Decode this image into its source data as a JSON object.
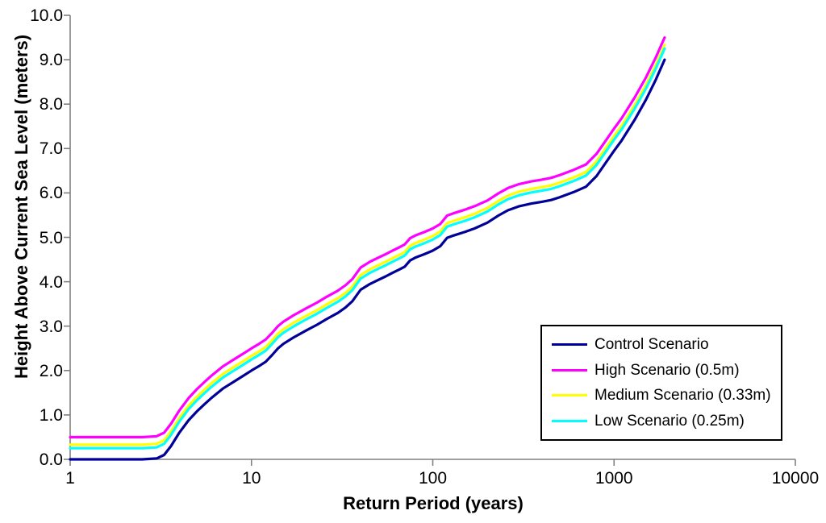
{
  "chart_data": {
    "type": "line",
    "title": "",
    "xlabel": "Return Period (years)",
    "ylabel": "Height Above Current Sea Level (meters)",
    "x_scale": "log",
    "xlim": [
      1,
      10000
    ],
    "ylim": [
      0,
      10
    ],
    "grid": false,
    "legend_position": "inside-bottom-right",
    "axis_color": "#808080",
    "x_ticks": [
      {
        "v": 1,
        "label": "1"
      },
      {
        "v": 10,
        "label": "10"
      },
      {
        "v": 100,
        "label": "100"
      },
      {
        "v": 1000,
        "label": "1000"
      },
      {
        "v": 10000,
        "label": "10000"
      }
    ],
    "y_ticks": [
      {
        "v": 0,
        "label": "0.0"
      },
      {
        "v": 1,
        "label": "1.0"
      },
      {
        "v": 2,
        "label": "2.0"
      },
      {
        "v": 3,
        "label": "3.0"
      },
      {
        "v": 4,
        "label": "4.0"
      },
      {
        "v": 5,
        "label": "5.0"
      },
      {
        "v": 6,
        "label": "6.0"
      },
      {
        "v": 7,
        "label": "7.0"
      },
      {
        "v": 8,
        "label": "8.0"
      },
      {
        "v": 9,
        "label": "9.0"
      },
      {
        "v": 10,
        "label": "10.0"
      }
    ],
    "x": [
      1,
      1.5,
      2,
      2.5,
      3,
      3.3,
      3.6,
      4,
      4.5,
      5,
      5.5,
      6,
      7,
      8,
      9,
      10,
      11,
      12,
      13,
      14,
      15,
      17,
      20,
      23,
      26,
      30,
      33,
      36,
      40,
      45,
      50,
      55,
      60,
      65,
      70,
      75,
      80,
      90,
      100,
      110,
      120,
      130,
      150,
      170,
      200,
      230,
      260,
      300,
      350,
      400,
      450,
      500,
      600,
      700,
      800,
      900,
      1000,
      1100,
      1300,
      1500,
      1700,
      1900
    ],
    "series": [
      {
        "name": "Control Scenario",
        "color": "#000099",
        "values": [
          0,
          0,
          0,
          0,
          0.02,
          0.1,
          0.3,
          0.6,
          0.88,
          1.08,
          1.24,
          1.38,
          1.6,
          1.75,
          1.88,
          2.0,
          2.1,
          2.2,
          2.35,
          2.5,
          2.6,
          2.74,
          2.9,
          3.03,
          3.16,
          3.3,
          3.42,
          3.56,
          3.82,
          3.95,
          4.04,
          4.12,
          4.2,
          4.27,
          4.34,
          4.48,
          4.54,
          4.62,
          4.7,
          4.8,
          4.99,
          5.04,
          5.12,
          5.2,
          5.33,
          5.49,
          5.61,
          5.7,
          5.76,
          5.8,
          5.84,
          5.9,
          6.02,
          6.14,
          6.38,
          6.68,
          6.95,
          7.18,
          7.65,
          8.1,
          8.55,
          9.0
        ]
      },
      {
        "name": "High Scenario (0.5m)",
        "color": "#FF00FF",
        "values": [
          0.5,
          0.5,
          0.5,
          0.5,
          0.52,
          0.6,
          0.8,
          1.1,
          1.38,
          1.58,
          1.74,
          1.88,
          2.1,
          2.25,
          2.38,
          2.5,
          2.6,
          2.7,
          2.85,
          3.0,
          3.1,
          3.24,
          3.4,
          3.53,
          3.66,
          3.8,
          3.92,
          4.06,
          4.32,
          4.45,
          4.54,
          4.62,
          4.7,
          4.77,
          4.84,
          4.98,
          5.04,
          5.12,
          5.2,
          5.3,
          5.49,
          5.54,
          5.62,
          5.7,
          5.83,
          5.99,
          6.11,
          6.2,
          6.26,
          6.3,
          6.34,
          6.4,
          6.52,
          6.64,
          6.88,
          7.18,
          7.45,
          7.68,
          8.15,
          8.6,
          9.05,
          9.5
        ]
      },
      {
        "name": "Medium Scenario (0.33m)",
        "color": "#FFFF00",
        "values": [
          0.33,
          0.33,
          0.33,
          0.33,
          0.35,
          0.43,
          0.63,
          0.93,
          1.21,
          1.41,
          1.57,
          1.71,
          1.93,
          2.08,
          2.21,
          2.33,
          2.43,
          2.53,
          2.68,
          2.83,
          2.93,
          3.07,
          3.23,
          3.36,
          3.49,
          3.63,
          3.75,
          3.89,
          4.15,
          4.28,
          4.37,
          4.45,
          4.53,
          4.6,
          4.67,
          4.81,
          4.87,
          4.95,
          5.03,
          5.13,
          5.32,
          5.37,
          5.45,
          5.53,
          5.66,
          5.82,
          5.94,
          6.03,
          6.09,
          6.13,
          6.17,
          6.23,
          6.35,
          6.47,
          6.71,
          7.01,
          7.28,
          7.51,
          7.98,
          8.43,
          8.88,
          9.33
        ]
      },
      {
        "name": "Low Scenario (0.25m)",
        "color": "#00FFFF",
        "values": [
          0.25,
          0.25,
          0.25,
          0.25,
          0.27,
          0.35,
          0.55,
          0.85,
          1.13,
          1.33,
          1.49,
          1.63,
          1.85,
          2.0,
          2.13,
          2.25,
          2.35,
          2.45,
          2.6,
          2.75,
          2.85,
          2.99,
          3.15,
          3.28,
          3.41,
          3.55,
          3.67,
          3.81,
          4.07,
          4.2,
          4.29,
          4.37,
          4.45,
          4.52,
          4.59,
          4.73,
          4.79,
          4.87,
          4.95,
          5.05,
          5.24,
          5.29,
          5.37,
          5.45,
          5.58,
          5.74,
          5.86,
          5.95,
          6.01,
          6.05,
          6.09,
          6.15,
          6.27,
          6.39,
          6.63,
          6.93,
          7.2,
          7.43,
          7.9,
          8.35,
          8.8,
          9.25
        ]
      }
    ]
  }
}
